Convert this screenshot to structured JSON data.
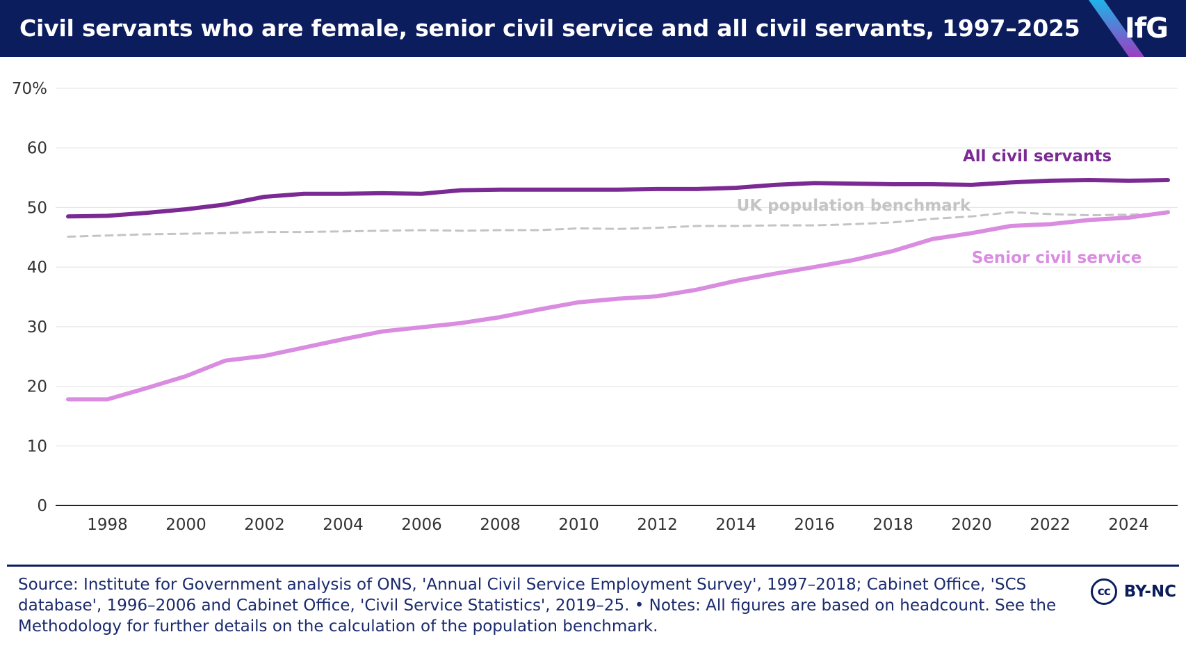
{
  "header": {
    "title": "Civil servants who are female, senior civil service and all civil servants, 1997–2025",
    "logo": "IfG"
  },
  "colors": {
    "header_bg": "#0c1d5e",
    "all_civil_servants": "#7b2a94",
    "senior_civil_service": "#d98ce0",
    "benchmark": "#c4c4c4",
    "logo_stripe_top": "#1fb2e8",
    "logo_stripe_bottom": "#9b3fc0"
  },
  "chart_data": {
    "type": "line",
    "title": "Civil servants who are female, senior civil service and all civil servants, 1997–2025",
    "xlabel": "",
    "ylabel": "",
    "xlim": [
      1997,
      2025
    ],
    "ylim": [
      0,
      70
    ],
    "y_ticks": [
      0,
      10,
      20,
      30,
      40,
      50,
      60,
      70
    ],
    "y_tick_labels": [
      "0",
      "10",
      "20",
      "30",
      "40",
      "50",
      "60",
      "70%"
    ],
    "x_ticks": [
      1998,
      2000,
      2002,
      2004,
      2006,
      2008,
      2010,
      2012,
      2014,
      2016,
      2018,
      2020,
      2022,
      2024
    ],
    "x_tick_labels": [
      "1998",
      "2000",
      "2002",
      "2004",
      "2006",
      "2008",
      "2010",
      "2012",
      "2014",
      "2016",
      "2018",
      "2020",
      "2022",
      "2024"
    ],
    "grid": true,
    "x": [
      1997,
      1998,
      1999,
      2000,
      2001,
      2002,
      2003,
      2004,
      2005,
      2006,
      2007,
      2008,
      2009,
      2010,
      2011,
      2012,
      2013,
      2014,
      2015,
      2016,
      2017,
      2018,
      2019,
      2020,
      2021,
      2022,
      2023,
      2024,
      2025
    ],
    "series": [
      {
        "name": "All civil servants",
        "style": "solid",
        "values": [
          48.5,
          48.6,
          49.1,
          49.7,
          50.5,
          51.8,
          52.3,
          52.3,
          52.4,
          52.3,
          52.9,
          53.0,
          53.0,
          53.0,
          53.0,
          53.1,
          53.1,
          53.3,
          53.8,
          54.1,
          54.0,
          53.9,
          53.9,
          53.8,
          54.2,
          54.5,
          54.6,
          54.5,
          54.6
        ]
      },
      {
        "name": "UK population benchmark",
        "style": "dashed",
        "values": [
          45.1,
          45.3,
          45.5,
          45.6,
          45.7,
          45.9,
          45.9,
          46.0,
          46.1,
          46.2,
          46.1,
          46.2,
          46.2,
          46.5,
          46.4,
          46.6,
          46.9,
          46.9,
          47.0,
          47.0,
          47.2,
          47.5,
          48.1,
          48.5,
          49.2,
          48.9,
          48.7,
          48.8,
          49.0
        ]
      },
      {
        "name": "Senior civil service",
        "style": "solid",
        "values": [
          17.8,
          17.8,
          19.7,
          21.7,
          24.3,
          25.1,
          26.5,
          27.9,
          29.2,
          29.9,
          30.6,
          31.6,
          32.9,
          34.1,
          34.7,
          35.1,
          36.2,
          37.7,
          38.9,
          40.0,
          41.2,
          42.7,
          44.7,
          45.7,
          46.9,
          47.2,
          47.9,
          48.3,
          49.2
        ]
      }
    ]
  },
  "footer": {
    "source": "Source: Institute for Government analysis of ONS, 'Annual Civil Service Employment Survey', 1997–2018; Cabinet Office, 'SCS database', 1996–2006 and Cabinet Office, 'Civil Service Statistics', 2019–25. • Notes: All figures are based on headcount. See the Methodology for further details on the calculation of the population benchmark.",
    "license_icon": "cc-icon",
    "license_badge": "cc",
    "license": "BY-NC"
  }
}
